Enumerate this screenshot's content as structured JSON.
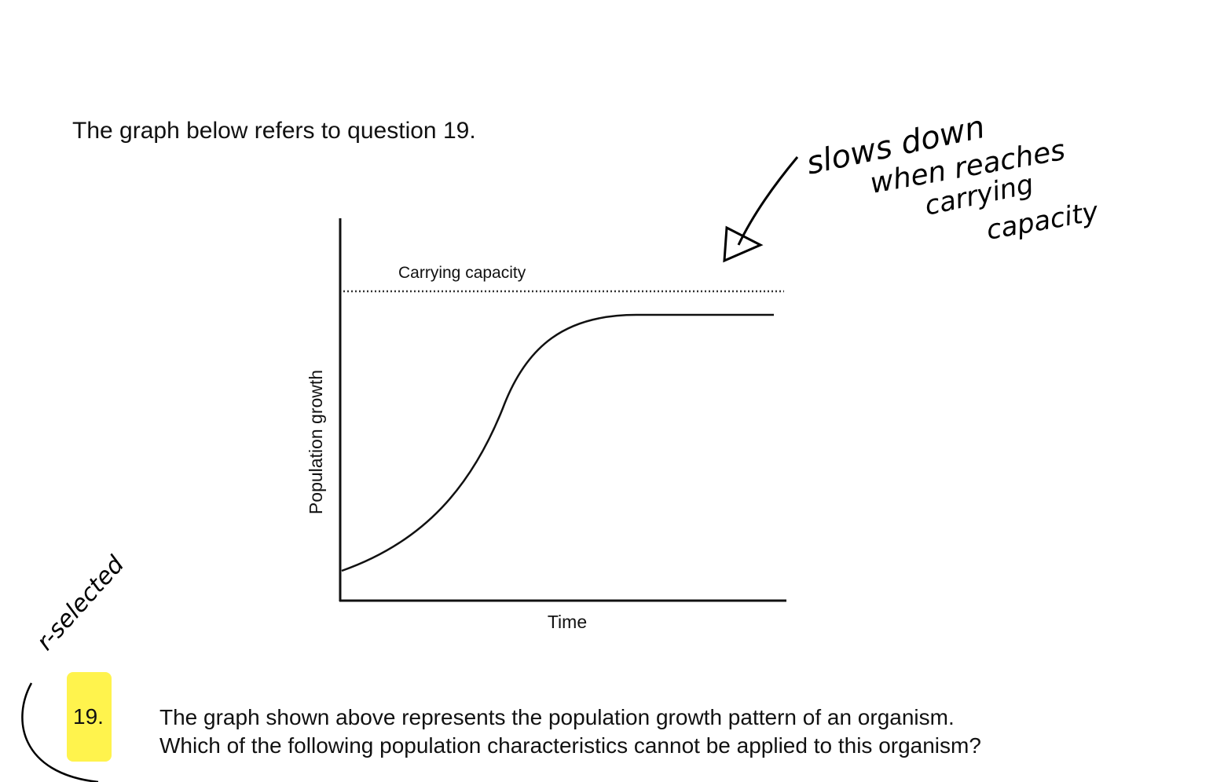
{
  "intro": "The graph below refers to question 19.",
  "graph": {
    "carrying_capacity_label": "Carrying capacity",
    "y_label": "Population growth",
    "x_label": "Time"
  },
  "question": {
    "number": "19.",
    "lines": [
      "The graph shown above represents the population growth pattern of an organism.",
      "Which of the following population characteristics cannot be applied to this organism?"
    ]
  },
  "annotations": {
    "note_lines": [
      "slows down",
      "when reaches",
      "carrying",
      "capacity"
    ],
    "side_note": "r-selected"
  }
}
